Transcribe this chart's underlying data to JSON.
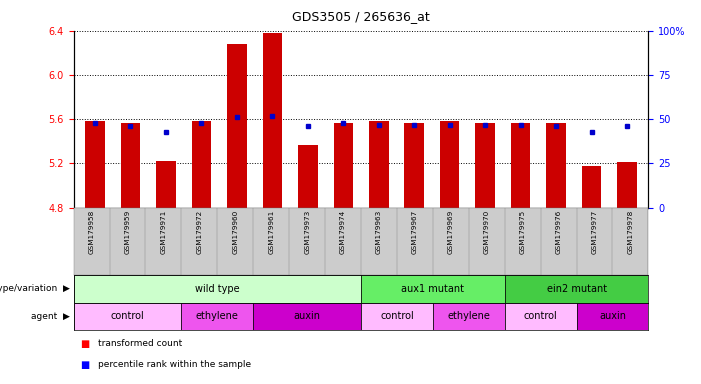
{
  "title": "GDS3505 / 265636_at",
  "samples": [
    "GSM179958",
    "GSM179959",
    "GSM179971",
    "GSM179972",
    "GSM179960",
    "GSM179961",
    "GSM179973",
    "GSM179974",
    "GSM179963",
    "GSM179967",
    "GSM179969",
    "GSM179970",
    "GSM179975",
    "GSM179976",
    "GSM179977",
    "GSM179978"
  ],
  "bar_values": [
    5.58,
    5.57,
    5.22,
    5.58,
    6.28,
    6.38,
    5.37,
    5.57,
    5.58,
    5.57,
    5.58,
    5.57,
    5.57,
    5.57,
    5.18,
    5.21
  ],
  "percentile_values": [
    48,
    46,
    43,
    48,
    51,
    52,
    46,
    48,
    47,
    47,
    47,
    47,
    47,
    46,
    43,
    46
  ],
  "ylim_left": [
    4.8,
    6.4
  ],
  "ylim_right": [
    0,
    100
  ],
  "yticks_left": [
    4.8,
    5.2,
    5.6,
    6.0,
    6.4
  ],
  "yticks_right": [
    0,
    25,
    50,
    75,
    100
  ],
  "ytick_labels_right": [
    "0",
    "25",
    "50",
    "75",
    "100%"
  ],
  "bar_color": "#cc0000",
  "dot_color": "#0000cc",
  "genotype_groups": [
    {
      "label": "wild type",
      "start": 0,
      "end": 7,
      "color": "#ccffcc"
    },
    {
      "label": "aux1 mutant",
      "start": 8,
      "end": 11,
      "color": "#66ee66"
    },
    {
      "label": "ein2 mutant",
      "start": 12,
      "end": 15,
      "color": "#44cc44"
    }
  ],
  "agent_groups": [
    {
      "label": "control",
      "start": 0,
      "end": 2,
      "color": "#ffbbff"
    },
    {
      "label": "ethylene",
      "start": 3,
      "end": 4,
      "color": "#ee55ee"
    },
    {
      "label": "auxin",
      "start": 5,
      "end": 7,
      "color": "#cc00cc"
    },
    {
      "label": "control",
      "start": 8,
      "end": 9,
      "color": "#ffbbff"
    },
    {
      "label": "ethylene",
      "start": 10,
      "end": 11,
      "color": "#ee55ee"
    },
    {
      "label": "control",
      "start": 12,
      "end": 13,
      "color": "#ffbbff"
    },
    {
      "label": "auxin",
      "start": 14,
      "end": 15,
      "color": "#cc00cc"
    }
  ]
}
